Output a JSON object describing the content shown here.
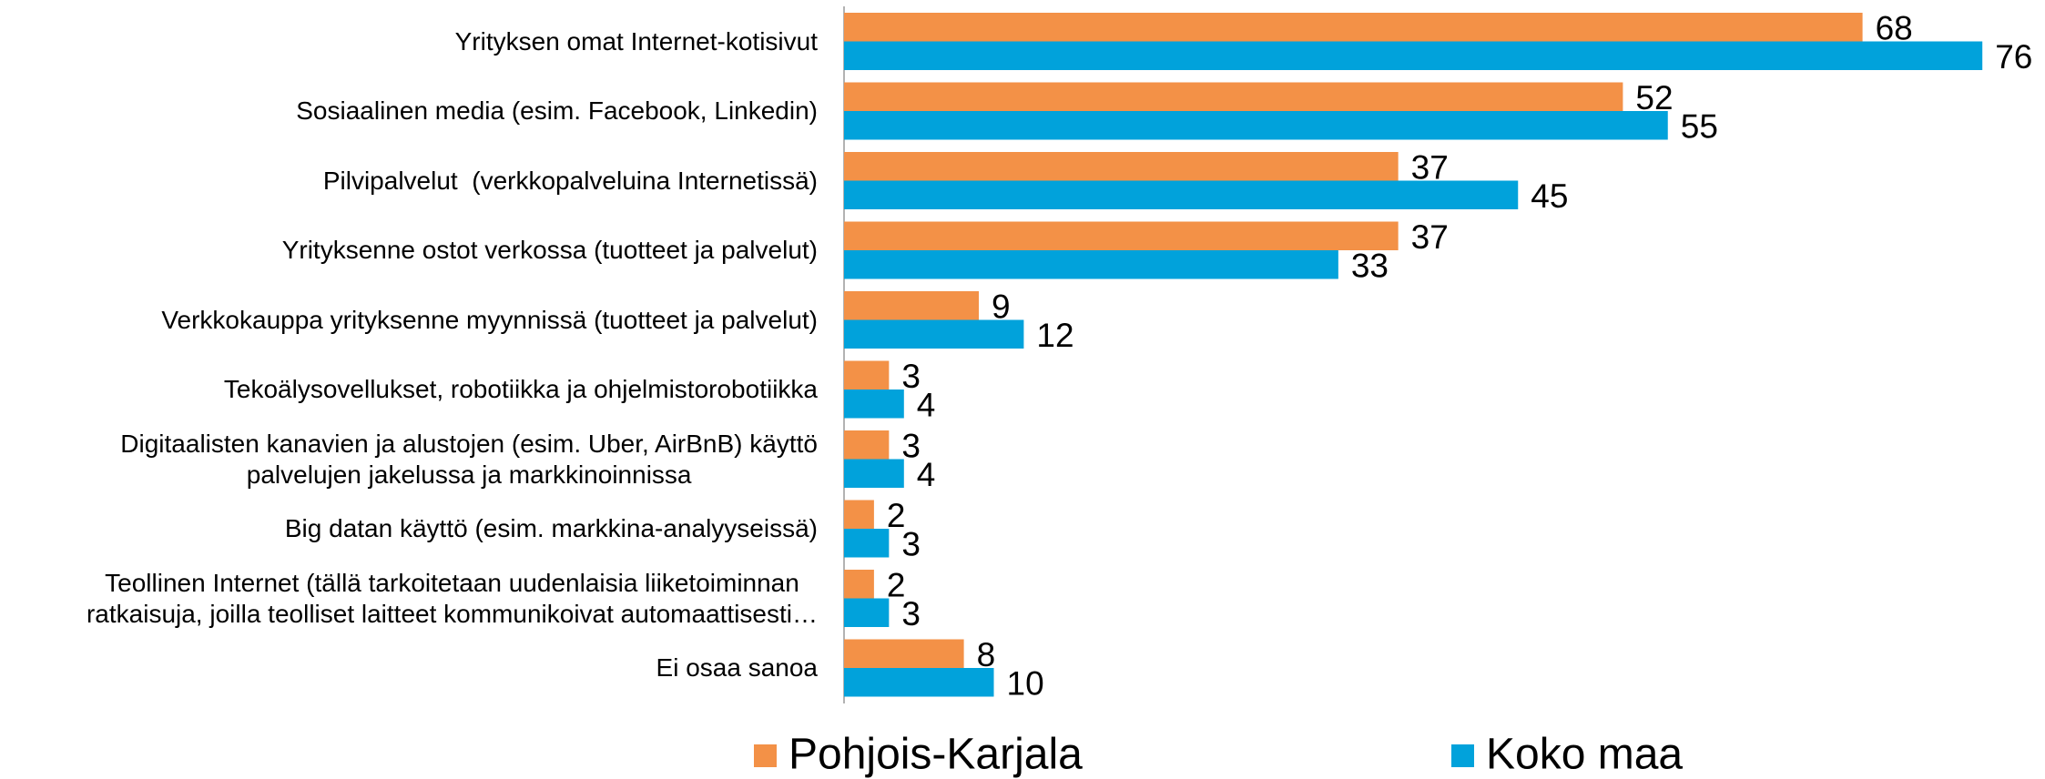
{
  "chart_data": {
    "type": "bar",
    "orientation": "horizontal",
    "categories": [
      "Yrityksen omat Internet-kotisivut",
      "Sosiaalinen media (esim. Facebook, Linkedin)",
      "Pilvipalvelut  (verkkopalveluina Internetissä)",
      "Yrityksenne ostot verkossa (tuotteet ja palvelut)",
      "Verkkokauppa yrityksenne myynnissä (tuotteet ja palvelut)",
      "Tekoälysovellukset, robotiikka ja ohjelmistorobotiikka",
      "Digitaalisten kanavien ja alustojen (esim. Uber, AirBnB) käyttö\npalvelujen jakelussa ja markkinoinnissa",
      "Big datan käyttö (esim. markkina-analyyseissä)",
      "Teollinen Internet (tällä tarkoitetaan uudenlaisia liiketoiminnan\nratkaisuja, joilla teolliset laitteet kommunikoivat automaattisesti…",
      "Ei osaa sanoa"
    ],
    "series": [
      {
        "name": "Pohjois-Karjala",
        "color": "#F39147",
        "values": [
          68,
          52,
          37,
          37,
          9,
          3,
          3,
          2,
          2,
          8
        ]
      },
      {
        "name": "Koko maa",
        "color": "#01A2DB",
        "values": [
          76,
          55,
          45,
          33,
          12,
          4,
          4,
          3,
          3,
          10
        ]
      }
    ],
    "xlim": [
      0,
      80
    ],
    "legend": "bottom"
  }
}
